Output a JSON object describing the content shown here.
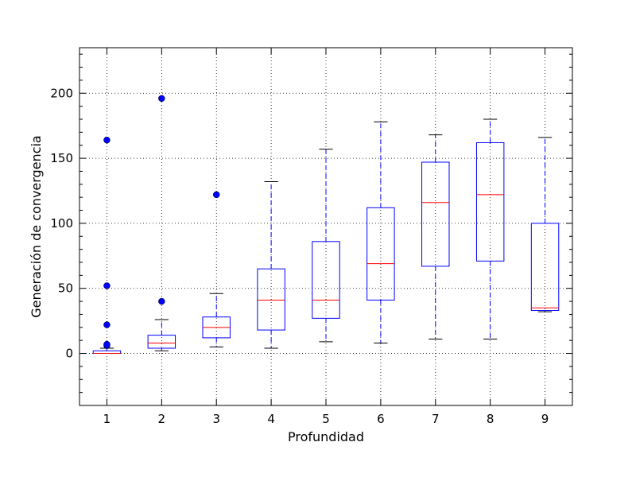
{
  "chart_data": {
    "type": "boxplot",
    "title": "",
    "xlabel": "Profundidad",
    "ylabel": "Generación de convergencia",
    "ylim": [
      -40,
      235
    ],
    "yticks": [
      0,
      50,
      100,
      150,
      200
    ],
    "grid": true,
    "categories": [
      "1",
      "2",
      "3",
      "4",
      "5",
      "6",
      "7",
      "8",
      "9"
    ],
    "boxes": [
      {
        "label": "1",
        "whisker_low": 0,
        "q1": 0,
        "median": 0,
        "q3": 2,
        "whisker_high": 4,
        "outliers": [
          6,
          7,
          22,
          52,
          164
        ]
      },
      {
        "label": "2",
        "whisker_low": 2,
        "q1": 4,
        "median": 8,
        "q3": 14,
        "whisker_high": 26,
        "outliers": [
          40,
          196
        ]
      },
      {
        "label": "3",
        "whisker_low": 5,
        "q1": 12,
        "median": 20,
        "q3": 28,
        "whisker_high": 46,
        "outliers": [
          122
        ]
      },
      {
        "label": "4",
        "whisker_low": 4,
        "q1": 18,
        "median": 41,
        "q3": 65,
        "whisker_high": 132,
        "outliers": []
      },
      {
        "label": "5",
        "whisker_low": 9,
        "q1": 27,
        "median": 41,
        "q3": 86,
        "whisker_high": 157,
        "outliers": []
      },
      {
        "label": "6",
        "whisker_low": 8,
        "q1": 41,
        "median": 69,
        "q3": 112,
        "whisker_high": 178,
        "outliers": []
      },
      {
        "label": "7",
        "whisker_low": 11,
        "q1": 67,
        "median": 116,
        "q3": 147,
        "whisker_high": 168,
        "outliers": []
      },
      {
        "label": "8",
        "whisker_low": 11,
        "q1": 71,
        "median": 122,
        "q3": 162,
        "whisker_high": 180,
        "outliers": []
      },
      {
        "label": "9",
        "whisker_low": 32,
        "q1": 33,
        "median": 35,
        "q3": 100,
        "whisker_high": 166,
        "outliers": []
      }
    ],
    "colors": {
      "box": "#0000ff",
      "median": "#ff0000",
      "whisker": "#0000ff",
      "cap": "#000000",
      "outlier": "#0000ff"
    }
  }
}
